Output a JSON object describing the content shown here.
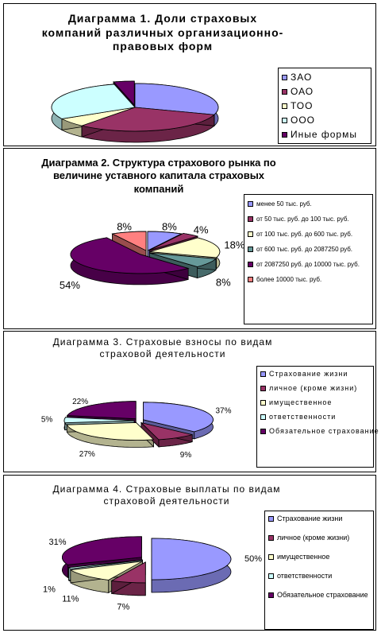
{
  "chart_data": [
    {
      "type": "pie",
      "title": "Диаграмма 1. Доли страховых компаний различных организационно-правовых форм",
      "categories": [
        "ЗАО",
        "ОАО",
        "ТОО",
        "ООО",
        "Иные формы"
      ],
      "values": [
        30,
        31,
        6,
        29,
        4
      ],
      "colors": [
        "#9999ff",
        "#993366",
        "#ffffcc",
        "#ccffff",
        "#660066"
      ],
      "data_labels": [],
      "legend_position": "right"
    },
    {
      "type": "pie",
      "title": "Диаграмма 2. Структура страхового рынка по величине уставного капитала страховых компаний",
      "categories": [
        "менее 50 тыс. руб.",
        "от 50 тыс. руб. до 100 тыс. руб.",
        "от 100 тыс. руб. до 600 тыс. руб.",
        "от 600 тыс. руб. до 2087250 руб.",
        "от 2087250 руб. до 10000 тыс. руб.",
        "более 10000 тыс. руб."
      ],
      "values": [
        8,
        4,
        18,
        8,
        54,
        8
      ],
      "colors": [
        "#9999ff",
        "#993366",
        "#ffffcc",
        "#669999",
        "#660066",
        "#ff8080"
      ],
      "data_labels": [
        "8%",
        "4%",
        "18%",
        "8%",
        "54%",
        "8%"
      ],
      "legend_position": "right"
    },
    {
      "type": "pie",
      "title": "Диаграмма 3. Страховые взносы по видам страховой деятельности",
      "categories": [
        "Страхование жизни",
        "личное (кроме жизни)",
        "имущественное",
        "ответственности",
        "Обязательное страхование"
      ],
      "values": [
        37,
        9,
        27,
        5,
        22
      ],
      "colors": [
        "#9999ff",
        "#993366",
        "#ffffcc",
        "#ccffff",
        "#660066"
      ],
      "data_labels": [
        "37%",
        "9%",
        "27%",
        "5%",
        "22%"
      ],
      "legend_position": "right"
    },
    {
      "type": "pie",
      "title": "Диаграмма 4. Страховые выплаты по видам страховой деятельности",
      "categories": [
        "Страхование жизни",
        "личное (кроме жизни)",
        "имущественное",
        "ответственности",
        "Обязательное страхование"
      ],
      "values": [
        50,
        7,
        11,
        1,
        31
      ],
      "colors": [
        "#9999ff",
        "#993366",
        "#ffffcc",
        "#ccffff",
        "#660066"
      ],
      "data_labels": [
        "50%",
        "7%",
        "11%",
        "1%",
        "31%"
      ],
      "legend_position": "right"
    }
  ]
}
